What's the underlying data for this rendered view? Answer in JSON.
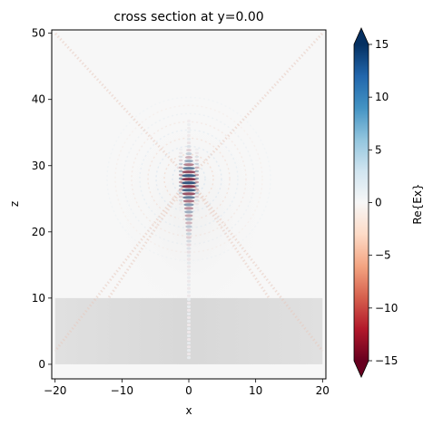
{
  "chart_data": {
    "type": "heatmap",
    "title": "cross section at y=0.00",
    "xlabel": "x",
    "ylabel": "z",
    "xlim": [
      -20.5,
      20.5
    ],
    "ylim": [
      -2.2,
      50.5
    ],
    "x_ticks": [
      -20,
      -10,
      0,
      10,
      20
    ],
    "x_tick_labels": [
      "−20",
      "−10",
      "0",
      "10",
      "20"
    ],
    "y_ticks": [
      0,
      10,
      20,
      30,
      40,
      50
    ],
    "y_tick_labels": [
      "0",
      "10",
      "20",
      "30",
      "40",
      "50"
    ],
    "grid": false,
    "colormap": "RdBu",
    "colorbar": {
      "label": "Re{Ex}",
      "range": [
        -15,
        15
      ],
      "extend": "both",
      "ticks": [
        -15,
        -10,
        -5,
        0,
        5,
        10,
        15
      ],
      "tick_labels": [
        "−15",
        "−10",
        "−5",
        "0",
        "5",
        "10",
        "15"
      ]
    },
    "substrate": {
      "x": [
        -20,
        20
      ],
      "z": [
        0,
        10
      ],
      "color": "#d9d9d9"
    },
    "focus": {
      "x": 0,
      "z": 28,
      "peak_field": 15
    }
  }
}
